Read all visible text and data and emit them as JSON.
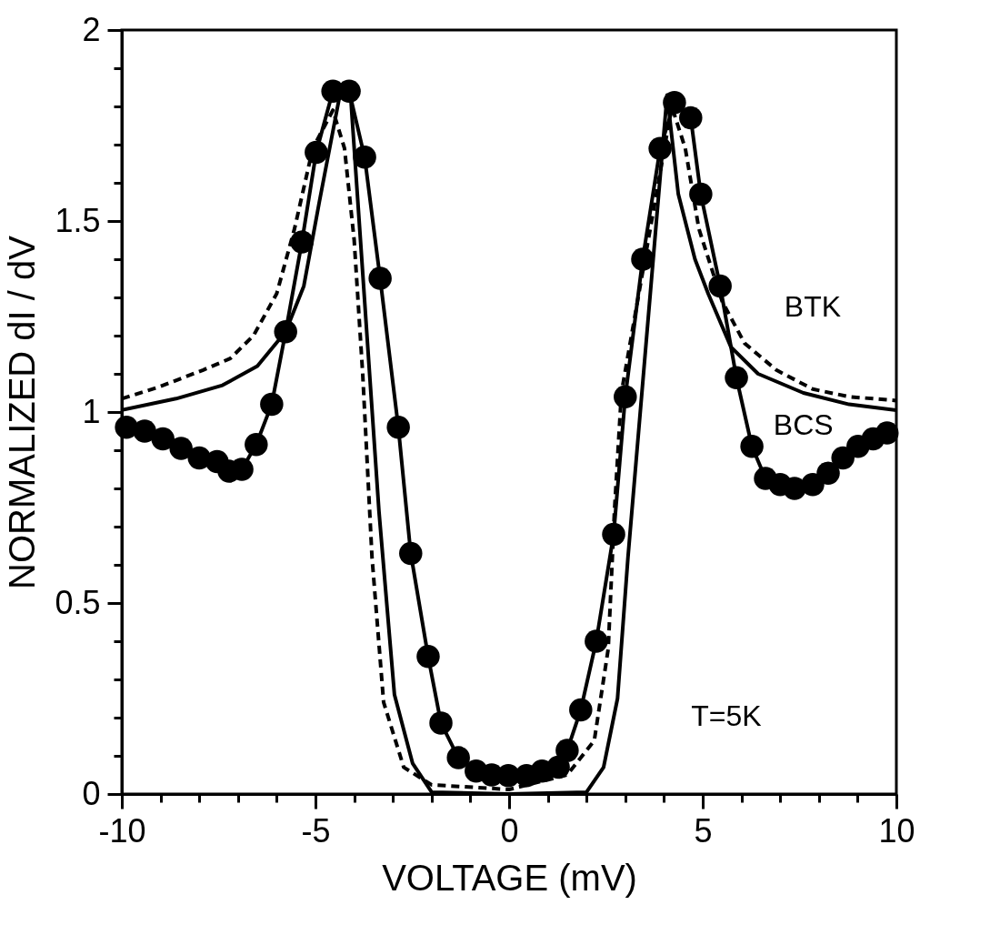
{
  "chart_data": {
    "type": "line",
    "xlabel": "VOLTAGE (mV)",
    "ylabel": "NORMALIZED  dI / dV",
    "xlim": [
      -10,
      10
    ],
    "ylim": [
      0,
      2
    ],
    "xticks": [
      -10,
      {
        "value": -9,
        "label": null
      },
      {
        "value": -8,
        "label": null
      },
      {
        "value": -7,
        "label": null
      },
      {
        "value": -6,
        "label": null
      },
      -5,
      {
        "value": -4,
        "label": null
      },
      {
        "value": -3,
        "label": null
      },
      {
        "value": -2,
        "label": null
      },
      {
        "value": -1,
        "label": null
      },
      0,
      {
        "value": 1,
        "label": null
      },
      {
        "value": 2,
        "label": null
      },
      {
        "value": 3,
        "label": null
      },
      {
        "value": 4,
        "label": null
      },
      5,
      {
        "value": 6,
        "label": null
      },
      {
        "value": 7,
        "label": null
      },
      {
        "value": 8,
        "label": null
      },
      {
        "value": 9,
        "label": null
      },
      10
    ],
    "yticks": [
      0,
      {
        "value": 0.1,
        "label": null
      },
      {
        "value": 0.2,
        "label": null
      },
      {
        "value": 0.3,
        "label": null
      },
      {
        "value": 0.4,
        "label": null
      },
      0.5,
      {
        "value": 0.6,
        "label": null
      },
      {
        "value": 0.7,
        "label": null
      },
      {
        "value": 0.8,
        "label": null
      },
      {
        "value": 0.9,
        "label": null
      },
      1,
      {
        "value": 1.1,
        "label": null
      },
      {
        "value": 1.2,
        "label": null
      },
      {
        "value": 1.3,
        "label": null
      },
      {
        "value": 1.4,
        "label": null
      },
      1.5,
      {
        "value": 1.6,
        "label": null
      },
      {
        "value": 1.7,
        "label": null
      },
      {
        "value": 1.8,
        "label": null
      },
      {
        "value": 1.9,
        "label": null
      },
      2
    ],
    "grid": false,
    "annotations": [
      "T=5K"
    ],
    "series": [
      {
        "name": "BTK",
        "color": "#000000",
        "line_style": "dashed",
        "marker": "none",
        "x": [
          -10,
          -9.06,
          -7.9,
          -7.2,
          -6.6,
          -6.0,
          -5.54,
          -5.07,
          -4.55,
          -4.25,
          -4.0,
          -3.78,
          -3.54,
          -3.24,
          -2.72,
          -2.0,
          0,
          1.5,
          2.2,
          2.56,
          2.72,
          2.9,
          4.2,
          4.55,
          4.9,
          5.5,
          6.08,
          6.9,
          7.84,
          8.78,
          10
        ],
        "values": [
          1.035,
          1.065,
          1.11,
          1.14,
          1.2,
          1.31,
          1.48,
          1.69,
          1.79,
          1.69,
          1.45,
          1.1,
          0.62,
          0.24,
          0.07,
          0.024,
          0.012,
          0.05,
          0.14,
          0.38,
          0.74,
          1.05,
          1.8,
          1.69,
          1.48,
          1.29,
          1.18,
          1.11,
          1.06,
          1.04,
          1.03
        ]
      },
      {
        "name": "BCS",
        "color": "#000000",
        "line_style": "solid",
        "marker": "none",
        "x": [
          -10,
          -8.6,
          -7.4,
          -6.5,
          -5.77,
          -5.3,
          -4.9,
          -4.37,
          -4.1,
          -3.36,
          -2.96,
          -2.49,
          -2.0,
          0,
          2.0,
          2.44,
          2.8,
          3.07,
          4.08,
          4.37,
          4.8,
          5.14,
          5.73,
          6.43,
          7.6,
          8.78,
          10
        ],
        "values": [
          1.005,
          1.035,
          1.07,
          1.12,
          1.21,
          1.33,
          1.55,
          1.83,
          1.84,
          0.74,
          0.26,
          0.08,
          0.005,
          0.0,
          0.005,
          0.07,
          0.25,
          0.62,
          1.83,
          1.57,
          1.4,
          1.31,
          1.17,
          1.1,
          1.05,
          1.02,
          1.005
        ]
      },
      {
        "color": "#000000",
        "line_style": "solid",
        "marker": "circle",
        "x": [
          -9.88,
          -9.41,
          -8.94,
          -8.47,
          -8.0,
          -7.54,
          -7.23,
          -6.9,
          -6.53,
          -6.13,
          -5.77,
          -5.35,
          -4.98,
          -4.55,
          -4.13,
          -3.73,
          -3.33,
          -2.86,
          -2.54,
          -2.09,
          -1.76,
          -1.31,
          -0.85,
          -0.45,
          -0.02,
          0.45,
          0.85,
          1.27,
          1.5,
          1.85,
          2.25,
          2.7,
          3.0,
          3.45,
          3.9,
          4.27,
          4.69,
          4.95,
          5.45,
          5.87,
          6.27,
          6.62,
          7.0,
          7.37,
          7.84,
          8.24,
          8.62,
          9.01,
          9.4,
          9.76
        ],
        "values": [
          0.96,
          0.95,
          0.93,
          0.905,
          0.88,
          0.87,
          0.845,
          0.85,
          0.915,
          1.02,
          1.21,
          1.445,
          1.68,
          1.84,
          1.84,
          1.667,
          1.35,
          0.96,
          0.63,
          0.36,
          0.186,
          0.095,
          0.06,
          0.05,
          0.048,
          0.048,
          0.06,
          0.07,
          0.114,
          0.22,
          0.4,
          0.68,
          1.04,
          1.4,
          1.69,
          1.81,
          1.77,
          1.57,
          1.33,
          1.09,
          0.91,
          0.826,
          0.81,
          0.8,
          0.81,
          0.84,
          0.88,
          0.91,
          0.93,
          0.945
        ]
      }
    ]
  }
}
